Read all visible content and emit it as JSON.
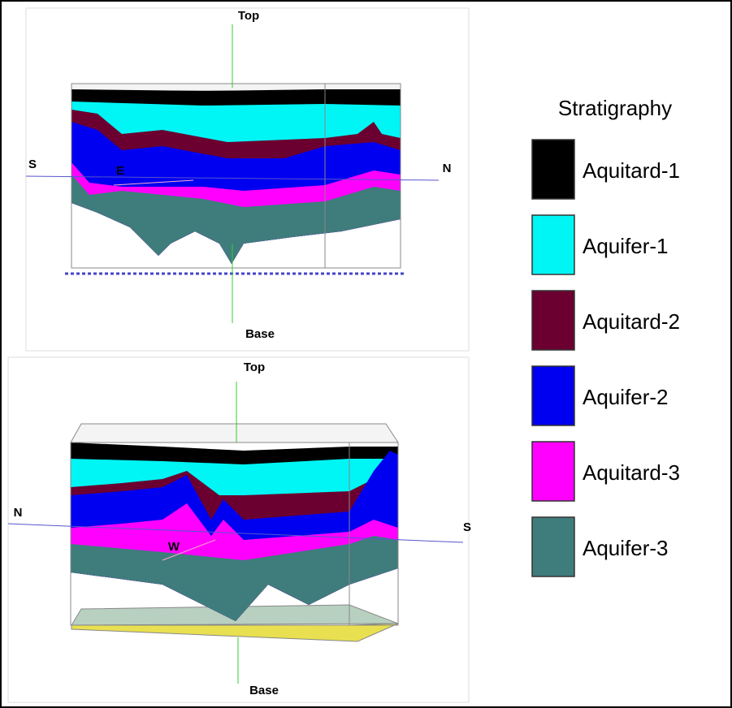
{
  "panels": [
    {
      "labels": {
        "top": "Top",
        "base": "Base",
        "left": "S",
        "right": "N",
        "direction": "E"
      }
    },
    {
      "labels": {
        "top": "Top",
        "base": "Base",
        "left": "N",
        "right": "S",
        "direction": "W"
      }
    }
  ],
  "legend": {
    "title": "Stratigraphy",
    "items": [
      {
        "label": "Aquitard-1",
        "color": "#000000"
      },
      {
        "label": "Aquifer-1",
        "color": "#00f5f5"
      },
      {
        "label": "Aquitard-2",
        "color": "#6b0030"
      },
      {
        "label": "Aquifer-2",
        "color": "#0000f0"
      },
      {
        "label": "Aquitard-3",
        "color": "#ff00ff"
      },
      {
        "label": "Aquifer-3",
        "color": "#3f7c7c"
      }
    ]
  }
}
